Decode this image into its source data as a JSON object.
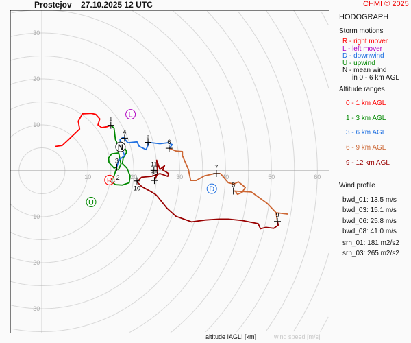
{
  "header": {
    "station": "Prostejov",
    "time": "27.10.2025 12 UTC",
    "credit": "CHMI © 2025"
  },
  "panel": {
    "title": "HODOGRAPH",
    "storm_title": "Storm motions",
    "storm": [
      {
        "text": "R - right mover",
        "color": "#ff0000"
      },
      {
        "text": "L - left mover",
        "color": "#b000c0"
      },
      {
        "text": "D - downwind",
        "color": "#1e6fe0"
      },
      {
        "text": "U - upwind",
        "color": "#008800"
      },
      {
        "text": "N - mean wind",
        "color": "#111111"
      },
      {
        "text": "in 0 - 6 km AGL",
        "color": "#111111"
      }
    ],
    "alt_title": "Altitude ranges",
    "alt": [
      {
        "text": "0 - 1 km AGL",
        "color": "#ff0000"
      },
      {
        "text": "1 - 3 km AGL",
        "color": "#008800"
      },
      {
        "text": "3 - 6 km AGL",
        "color": "#1e6fe0"
      },
      {
        "text": "6 - 9 km AGL",
        "color": "#cc6633"
      },
      {
        "text": "9 - 12 km AGL",
        "color": "#990000"
      }
    ],
    "wind_title": "Wind profile",
    "wind": [
      "bwd_01: 13.5 m/s",
      "bwd_03: 15.1 m/s",
      "bwd_06: 25.8 m/s",
      "bwd_08: 41.0 m/s"
    ],
    "srh": [
      "srh_01: 181 m2/s2",
      "srh_03: 265 m2/s2"
    ]
  },
  "footer": {
    "alt_label": "altitude !AGL! [km]",
    "speed_label": "wind speed [m/s]"
  },
  "chart_data": {
    "type": "line",
    "subtype": "hodograph",
    "xlabel": "wind speed [m/s]",
    "x_ticks": [
      10,
      20,
      30,
      40,
      50,
      60
    ],
    "y_ticks": [
      30,
      20,
      10,
      -10,
      -20,
      -30
    ],
    "y_tick_labels": [
      "30",
      "20",
      "10",
      "10",
      "20",
      "30"
    ],
    "ring_step": 5,
    "grid": true,
    "series": [
      {
        "range": "0 - 1 km AGL",
        "color": "#ff0000",
        "points": [
          [
            2.9,
            5.3
          ],
          [
            4.4,
            5.5
          ],
          [
            5.8,
            6.8
          ],
          [
            8.2,
            9.1
          ],
          [
            7.9,
            10.8
          ],
          [
            8.8,
            12.4
          ],
          [
            10.7,
            12.5
          ],
          [
            11.7,
            12.3
          ],
          [
            12.6,
            11.3
          ],
          [
            12.2,
            10.0
          ],
          [
            13.0,
            9.4
          ],
          [
            14.2,
            9.6
          ],
          [
            15.0,
            9.9
          ]
        ]
      },
      {
        "range": "1 - 3 km AGL",
        "color": "#008800",
        "points": [
          [
            15.0,
            9.9
          ],
          [
            15.7,
            9.3
          ],
          [
            16.0,
            6.8
          ],
          [
            16.7,
            5.3
          ],
          [
            18.1,
            4.8
          ],
          [
            18.5,
            4.1
          ],
          [
            17.7,
            2.8
          ],
          [
            17.5,
            1.6
          ],
          [
            18.5,
            0.6
          ],
          [
            19.2,
            -1.1
          ],
          [
            19.0,
            -2.6
          ],
          [
            17.5,
            -3.1
          ],
          [
            16.0,
            -3.0
          ],
          [
            15.2,
            -2.4
          ],
          [
            15.7,
            -1.1
          ],
          [
            16.2,
            0.4
          ],
          [
            16.7,
            0.3
          ],
          [
            17.2,
            1.5
          ],
          [
            16.7,
            3.9
          ],
          [
            15.2,
            3.7
          ],
          [
            14.5,
            2.8
          ],
          [
            14.6,
            1.8
          ],
          [
            15.7,
            0.6
          ],
          [
            16.3,
            0.8
          ]
        ]
      },
      {
        "range": "3 - 6 km AGL",
        "color": "#1e6fe0",
        "points": [
          [
            16.3,
            0.8
          ],
          [
            16.7,
            2.3
          ],
          [
            18.0,
            3.3
          ],
          [
            17.2,
            5.3
          ],
          [
            17.0,
            6.8
          ],
          [
            17.7,
            7.3
          ],
          [
            18.7,
            6.1
          ],
          [
            20.7,
            6.3
          ],
          [
            21.2,
            5.3
          ],
          [
            22.7,
            4.6
          ],
          [
            23.1,
            5.6
          ],
          [
            23.1,
            6.2
          ],
          [
            25.7,
            5.9
          ],
          [
            27.4,
            6.1
          ],
          [
            28.4,
            5.7
          ],
          [
            27.7,
            4.9
          ]
        ]
      },
      {
        "range": "6 - 9 km AGL",
        "color": "#cc6633",
        "points": [
          [
            27.7,
            4.9
          ],
          [
            29.2,
            4.3
          ],
          [
            30.6,
            4.2
          ],
          [
            30.6,
            3.3
          ],
          [
            31.9,
            0.3
          ],
          [
            32.4,
            -2.1
          ],
          [
            33.6,
            -2.1
          ],
          [
            35.4,
            -1.1
          ],
          [
            37.6,
            -0.6
          ],
          [
            38.9,
            -0.6
          ],
          [
            40.6,
            -2.6
          ],
          [
            41.8,
            -2.9
          ],
          [
            42.8,
            -2.4
          ],
          [
            44.3,
            -3.6
          ],
          [
            43.6,
            -4.7
          ],
          [
            42.6,
            -5.1
          ],
          [
            42.1,
            -4.4
          ],
          [
            41.7,
            -4.4
          ],
          [
            45.6,
            -4.6
          ],
          [
            49.1,
            -7.1
          ],
          [
            51.0,
            -9.1
          ],
          [
            53.5,
            -9.4
          ],
          [
            51.0,
            -9.1
          ],
          [
            51.3,
            -11.0
          ]
        ]
      },
      {
        "range": "9 - 12 km AGL",
        "color": "#990000",
        "points": [
          [
            51.3,
            -11.0
          ],
          [
            51.5,
            -11.8
          ],
          [
            50.5,
            -12.5
          ],
          [
            48.8,
            -12.3
          ],
          [
            47.6,
            -12.6
          ],
          [
            47.1,
            -11.5
          ],
          [
            43.6,
            -10.8
          ],
          [
            40.6,
            -10.5
          ],
          [
            38.6,
            -10.5
          ],
          [
            35.6,
            -10.7
          ],
          [
            32.6,
            -11.1
          ],
          [
            29.2,
            -9.9
          ],
          [
            27.2,
            -8.1
          ],
          [
            25.2,
            -5.6
          ],
          [
            24.7,
            -5.1
          ],
          [
            23.7,
            -4.5
          ],
          [
            21.7,
            -3.4
          ],
          [
            20.7,
            -2.4
          ],
          [
            21.7,
            -1.4
          ],
          [
            23.9,
            -1.2
          ],
          [
            25.7,
            -0.6
          ],
          [
            27.4,
            -1.2
          ],
          [
            27.6,
            -0.6
          ],
          [
            26.3,
            0.2
          ],
          [
            26.7,
            1.1
          ],
          [
            25.7,
            0.3
          ],
          [
            25.0,
            2.3
          ],
          [
            25.2,
            -0.6
          ],
          [
            24.5,
            -2.1
          ]
        ]
      }
    ],
    "altitude_markers": [
      {
        "label": "1",
        "u": 15.0,
        "v": 9.9
      },
      {
        "label": "2",
        "u": 15.2,
        "v": -2.4
      },
      {
        "label": "3",
        "u": 16.3,
        "v": 0.8
      },
      {
        "label": "4",
        "u": 18.0,
        "v": 7.1
      },
      {
        "label": "5",
        "u": 23.1,
        "v": 6.2
      },
      {
        "label": "6",
        "u": 27.7,
        "v": 4.9
      },
      {
        "label": "7",
        "u": 38.0,
        "v": -0.6
      },
      {
        "label": "8",
        "u": 41.7,
        "v": -4.4
      },
      {
        "label": "9",
        "u": 51.3,
        "v": -11.0
      },
      {
        "label": "10",
        "u": 20.7,
        "v": -2.2
      },
      {
        "label": "11",
        "u": 24.4,
        "v": 0.1
      },
      {
        "label": "12",
        "u": 24.5,
        "v": -2.1
      }
    ],
    "storm_motions": [
      {
        "label": "R",
        "u": 14.7,
        "v": -2.0,
        "color": "#ff0000"
      },
      {
        "label": "L",
        "u": 19.3,
        "v": 12.3,
        "color": "#b000c0"
      },
      {
        "label": "D",
        "u": 37.0,
        "v": -3.9,
        "color": "#1e6fe0"
      },
      {
        "label": "U",
        "u": 10.7,
        "v": -6.8,
        "color": "#008800"
      },
      {
        "label": "N",
        "u": 17.1,
        "v": 5.2,
        "color": "#111111"
      }
    ]
  }
}
